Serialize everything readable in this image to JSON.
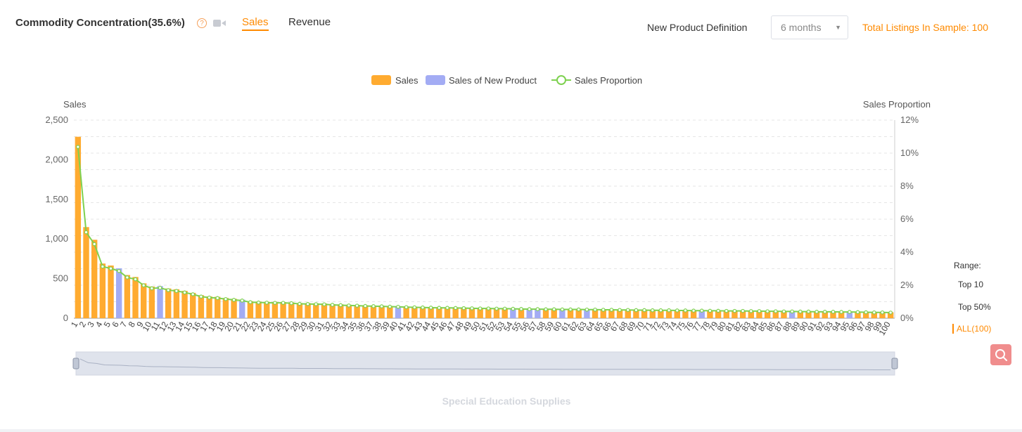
{
  "header": {
    "title": "Commodity Concentration(35.6%)",
    "help_glyph": "?",
    "tabs": [
      {
        "label": "Sales",
        "active": true
      },
      {
        "label": "Revenue",
        "active": false
      }
    ],
    "new_product_label": "New Product Definition",
    "new_product_select": "6 months",
    "total_listings": "Total Listings In Sample: 100"
  },
  "icons": [
    "help-icon",
    "video-icon",
    "chevron-down-icon",
    "search-icon"
  ],
  "colors": {
    "sales": "#ffab30",
    "new_product": "#a3acf4",
    "proportion": "#7ed150",
    "accent": "#ff8a00"
  },
  "range": {
    "title": "Range:",
    "options": [
      "Top 10",
      "Top 50%",
      "ALL(100)"
    ],
    "selected": "ALL(100)"
  },
  "chart_data": {
    "type": "bar",
    "title": "Special Education Supplies",
    "ylabel": "Sales",
    "y2label": "Sales Proportion",
    "ylim": [
      0,
      2500
    ],
    "yticks": [
      0,
      500,
      1000,
      1500,
      2000,
      2500
    ],
    "y2lim": [
      0,
      12
    ],
    "y2ticks": [
      0,
      2,
      4,
      6,
      8,
      10,
      12
    ],
    "y2_unit": "%",
    "legend": [
      "Sales",
      "Sales of New Product",
      "Sales Proportion"
    ],
    "legend_position": "top-center",
    "grid": true,
    "categories": [
      1,
      2,
      3,
      4,
      5,
      6,
      7,
      8,
      9,
      10,
      11,
      12,
      13,
      14,
      15,
      16,
      17,
      18,
      19,
      20,
      21,
      22,
      23,
      24,
      25,
      26,
      27,
      28,
      29,
      30,
      31,
      32,
      33,
      34,
      35,
      36,
      37,
      38,
      39,
      40,
      41,
      42,
      43,
      44,
      45,
      46,
      47,
      48,
      49,
      50,
      51,
      52,
      53,
      54,
      55,
      56,
      57,
      58,
      59,
      60,
      61,
      62,
      63,
      64,
      65,
      66,
      67,
      68,
      69,
      70,
      71,
      72,
      73,
      74,
      75,
      76,
      77,
      78,
      79,
      80,
      81,
      82,
      83,
      84,
      85,
      86,
      87,
      88,
      89,
      90,
      91,
      92,
      93,
      94,
      95,
      96,
      97,
      98,
      99,
      100
    ],
    "new_product_indices": [
      6,
      11,
      21,
      40,
      54,
      56,
      57,
      60,
      63,
      77,
      88,
      95
    ],
    "series": [
      {
        "name": "Sales",
        "values": [
          2290,
          1150,
          990,
          690,
          665,
          630,
          545,
          520,
          440,
          400,
          405,
          375,
          365,
          345,
          320,
          290,
          275,
          270,
          255,
          245,
          235,
          215,
          210,
          208,
          205,
          205,
          200,
          192,
          190,
          188,
          186,
          178,
          175,
          170,
          168,
          163,
          160,
          158,
          155,
          152,
          148,
          145,
          143,
          141,
          140,
          138,
          136,
          134,
          132,
          131,
          130,
          128,
          127,
          125,
          124,
          122,
          121,
          120,
          119,
          118,
          117,
          116,
          115,
          114,
          113,
          112,
          111,
          110,
          109,
          108,
          107,
          106,
          105,
          104,
          103,
          102,
          101,
          100,
          99,
          98,
          97,
          96,
          95,
          94,
          93,
          92,
          91,
          90,
          89,
          88,
          87,
          86,
          85,
          84,
          83,
          82,
          80,
          78,
          77,
          75
        ]
      },
      {
        "name": "Sales Proportion",
        "axis": "right",
        "values": [
          10.38,
          5.21,
          4.49,
          3.13,
          3.01,
          2.86,
          2.47,
          2.36,
          1.99,
          1.81,
          1.84,
          1.7,
          1.65,
          1.56,
          1.45,
          1.31,
          1.25,
          1.22,
          1.16,
          1.11,
          1.07,
          0.97,
          0.95,
          0.94,
          0.93,
          0.93,
          0.91,
          0.87,
          0.86,
          0.85,
          0.84,
          0.81,
          0.79,
          0.77,
          0.76,
          0.74,
          0.73,
          0.72,
          0.7,
          0.69,
          0.67,
          0.66,
          0.65,
          0.64,
          0.63,
          0.63,
          0.62,
          0.61,
          0.6,
          0.59,
          0.59,
          0.58,
          0.58,
          0.57,
          0.56,
          0.55,
          0.55,
          0.54,
          0.54,
          0.53,
          0.53,
          0.53,
          0.52,
          0.52,
          0.51,
          0.51,
          0.5,
          0.5,
          0.49,
          0.49,
          0.48,
          0.48,
          0.48,
          0.47,
          0.47,
          0.46,
          0.46,
          0.45,
          0.45,
          0.44,
          0.44,
          0.44,
          0.43,
          0.43,
          0.42,
          0.42,
          0.41,
          0.41,
          0.4,
          0.4,
          0.39,
          0.39,
          0.39,
          0.38,
          0.38,
          0.37,
          0.36,
          0.35,
          0.35,
          0.34
        ]
      }
    ]
  }
}
